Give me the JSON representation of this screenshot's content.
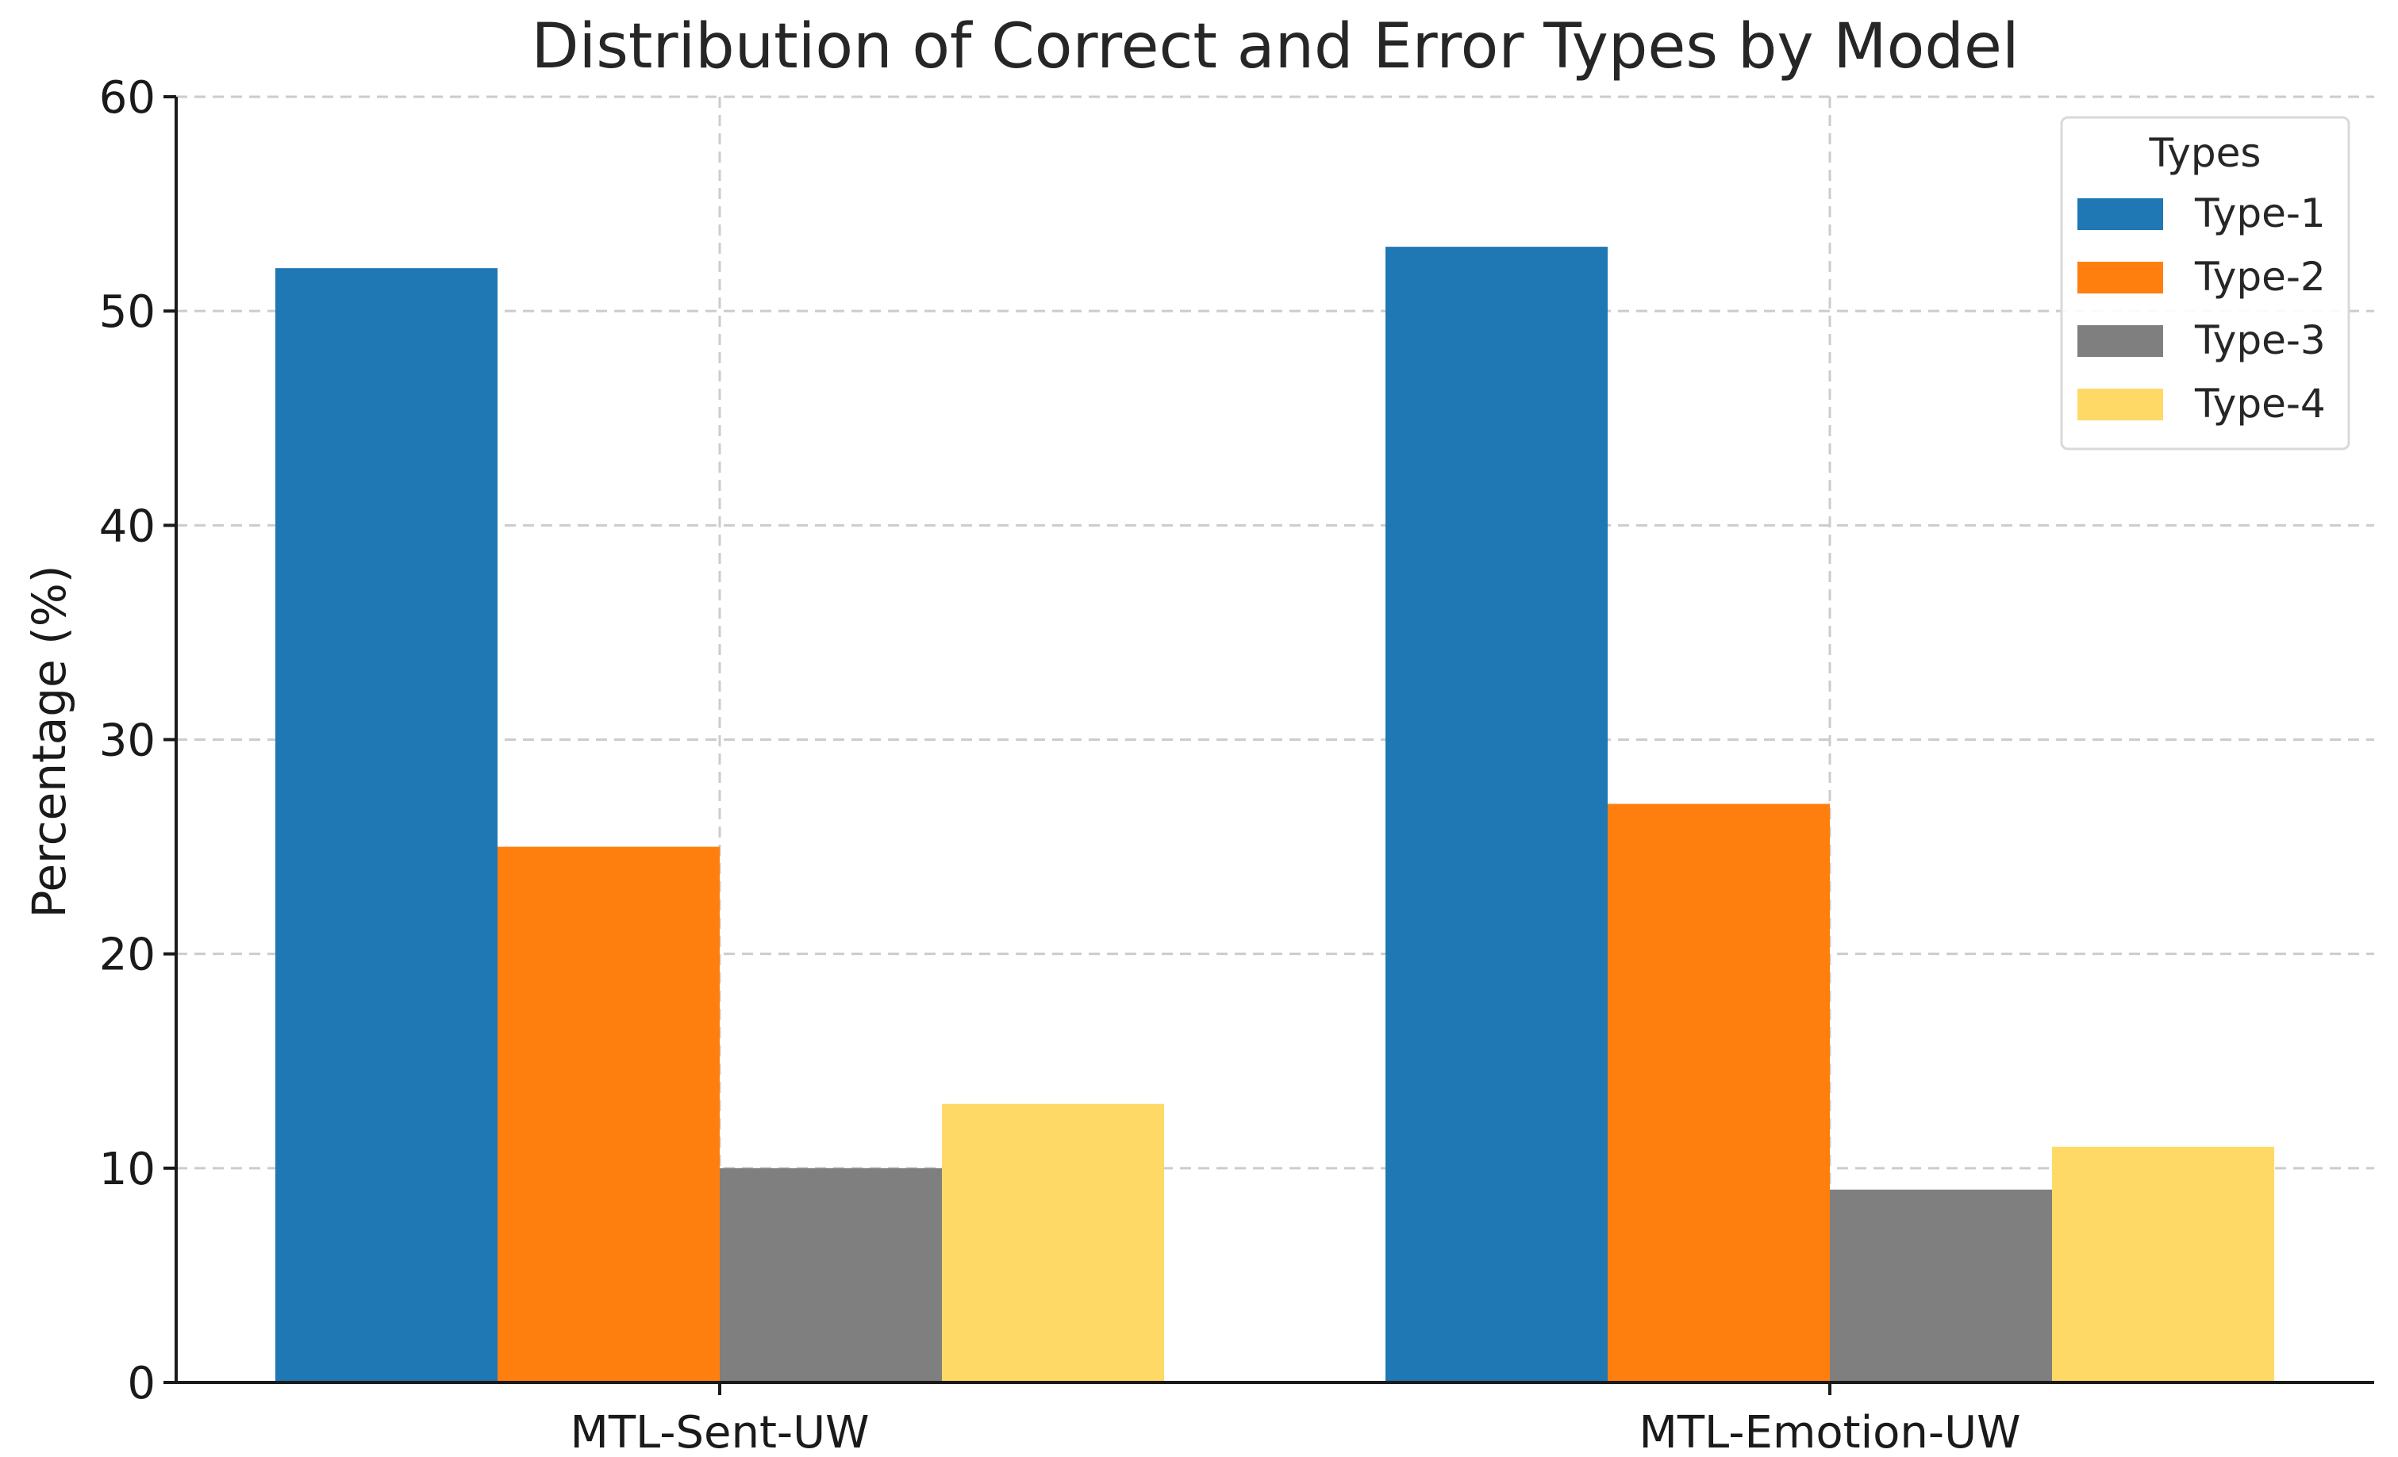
{
  "chart_data": {
    "type": "bar",
    "title": "Distribution of Correct and Error Types by Model",
    "xlabel": "",
    "ylabel": "Percentage (%)",
    "ylim": [
      0,
      60
    ],
    "yticks": [
      0,
      10,
      20,
      30,
      40,
      50,
      60
    ],
    "categories": [
      "MTL-Sent-UW",
      "MTL-Emotion-UW"
    ],
    "series": [
      {
        "name": "Type-1",
        "color": "#1f77b4",
        "values": [
          52,
          53
        ]
      },
      {
        "name": "Type-2",
        "color": "#ff7f0e",
        "values": [
          25,
          27
        ]
      },
      {
        "name": "Type-3",
        "color": "#7f7f7f",
        "values": [
          10,
          9
        ]
      },
      {
        "name": "Type-4",
        "color": "#ffd966",
        "values": [
          13,
          11
        ]
      }
    ],
    "legend": {
      "title": "Types",
      "position": "top-right"
    },
    "grid": true
  }
}
